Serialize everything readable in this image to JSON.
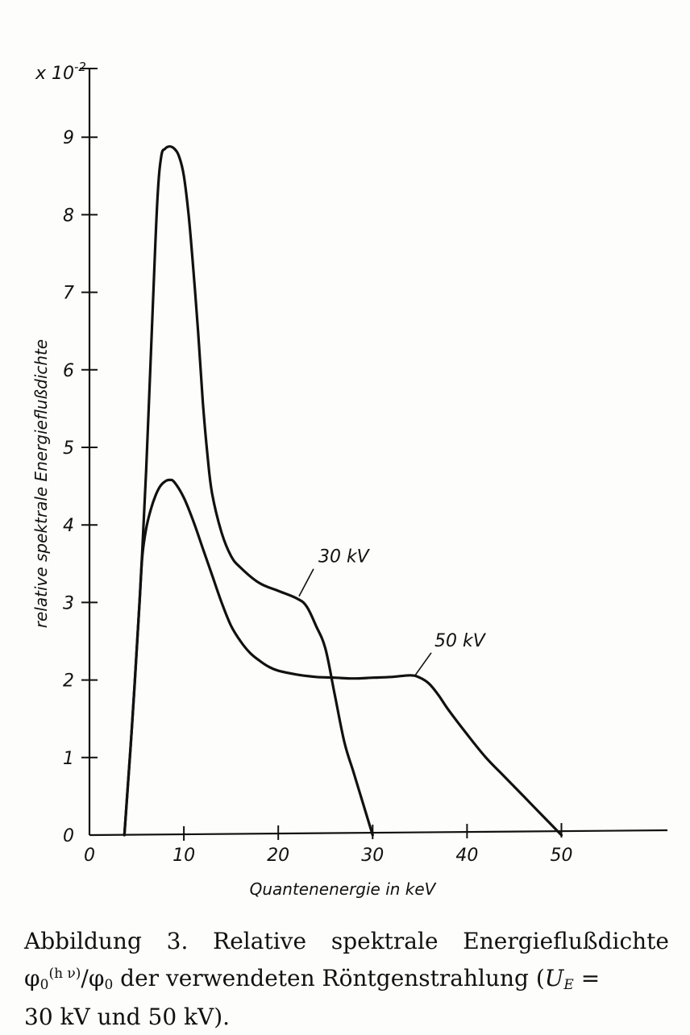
{
  "chart_data": {
    "type": "line",
    "title": "",
    "xlabel": "Quantenenergie in keV",
    "ylabel": "relative spektrale Energieflußdichte",
    "y_multiplier": "x 10",
    "y_multiplier_exponent": "-2",
    "xlim": [
      0,
      61
    ],
    "ylim": [
      0,
      10
    ],
    "x_ticks": [
      0,
      10,
      20,
      30,
      40,
      50
    ],
    "y_ticks": [
      0,
      1,
      2,
      3,
      4,
      5,
      6,
      7,
      8,
      9
    ],
    "grid": false,
    "legend": "none",
    "series": [
      {
        "name": "30 kV",
        "x": [
          3.7,
          4.5,
          5.3,
          6.0,
          6.7,
          7.2,
          7.6,
          8.0,
          8.5,
          9.0,
          9.5,
          10.0,
          10.5,
          11.0,
          11.5,
          12.0,
          12.5,
          13.0,
          14.0,
          15.0,
          16.0,
          18.0,
          20.0,
          22.0,
          23.0,
          24.0,
          25.0,
          26.0,
          27.0,
          28.0,
          29.0,
          30.0
        ],
        "values": [
          0.0,
          1.4,
          3.0,
          4.7,
          6.8,
          8.2,
          8.75,
          8.85,
          8.88,
          8.85,
          8.75,
          8.5,
          8.0,
          7.3,
          6.5,
          5.6,
          4.9,
          4.4,
          3.9,
          3.6,
          3.45,
          3.25,
          3.15,
          3.05,
          2.95,
          2.7,
          2.4,
          1.8,
          1.2,
          0.8,
          0.4,
          0.0
        ]
      },
      {
        "name": "50 kV",
        "x": [
          3.7,
          4.5,
          5.3,
          5.6,
          6.0,
          6.5,
          7.0,
          7.5,
          8.0,
          8.5,
          9.0,
          10.0,
          11.0,
          12.0,
          13.0,
          14.0,
          15.0,
          16.0,
          17.0,
          18.0,
          19.0,
          20.0,
          22.0,
          24.0,
          26.0,
          28.0,
          30.0,
          32.0,
          34.0,
          35.0,
          36.0,
          37.0,
          38.0,
          40.0,
          42.0,
          44.0,
          46.0,
          48.0,
          50.0
        ],
        "values": [
          0.0,
          1.4,
          3.0,
          3.6,
          3.95,
          4.2,
          4.38,
          4.5,
          4.56,
          4.58,
          4.55,
          4.35,
          4.05,
          3.7,
          3.35,
          3.0,
          2.7,
          2.5,
          2.35,
          2.25,
          2.17,
          2.12,
          2.07,
          2.04,
          2.03,
          2.02,
          2.03,
          2.04,
          2.06,
          2.03,
          1.95,
          1.8,
          1.62,
          1.3,
          1.0,
          0.75,
          0.5,
          0.25,
          0.0
        ]
      }
    ],
    "annotations": [
      {
        "text": "30 kV",
        "series": "30 kV",
        "at_x": 22.2,
        "at_y": 3.08
      },
      {
        "text": "50 kV",
        "series": "50 kV",
        "at_x": 34.5,
        "at_y": 2.06
      }
    ]
  },
  "caption": {
    "line1": "Abbildung 3. Relative spektrale Energieflußdichte",
    "phi": "φ",
    "sub0": "0",
    "sup_hv": "(h ν)",
    "slash_phi": "/φ",
    "line2_rest": " der verwendeten Röntgenstrahlung (",
    "u_symbol": "U",
    "u_sub": "E",
    "line2_end": " =",
    "line3": "30 kV und 50 kV)."
  }
}
